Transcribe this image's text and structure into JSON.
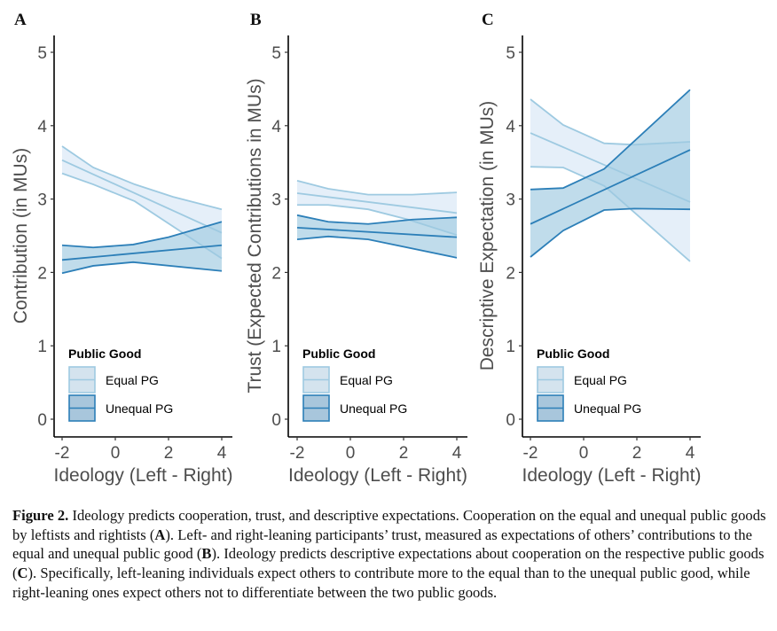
{
  "figure": {
    "caption_label": "Figure 2.",
    "caption_parts": [
      {
        "t": "  Ideology predicts cooperation, trust, and descriptive expectations. Cooperation on the equal and unequal public goods by leftists and rightists (",
        "b": false
      },
      {
        "t": "A",
        "b": true
      },
      {
        "t": "). Left- and right-leaning participants’ trust, measured as expectations of others’ contributions to the equal and unequal public good (",
        "b": false
      },
      {
        "t": "B",
        "b": true
      },
      {
        "t": "). Ideology predicts descriptive expectations about cooperation on the respective public goods (",
        "b": false
      },
      {
        "t": "C",
        "b": true
      },
      {
        "t": "). Specifically, left-leaning individuals expect others to contribute more to the equal than to the unequal public good, while right-leaning ones expect others not to differentiate between the two public goods.",
        "b": false
      }
    ]
  },
  "colors": {
    "equal_line": "#9ecae1",
    "equal_fill": "#deebf7",
    "unequal_line": "#2c7fb8",
    "unequal_fill": "#9ecae1",
    "axis": "#000000",
    "tick_text": "#4d4d4d"
  },
  "chart_data": [
    {
      "type": "line",
      "panel": "A",
      "title": "",
      "xlabel": "Ideology (Left - Right)",
      "ylabel": "Contribution (in MUs)",
      "xlim": [
        -2.3,
        4.4
      ],
      "ylim": [
        -0.25,
        5.2
      ],
      "xticks": [
        -2,
        0,
        2,
        4
      ],
      "yticks": [
        0,
        1,
        2,
        3,
        4,
        5
      ],
      "grid": false,
      "legend": {
        "title": "Public Good",
        "position": "bottom-left",
        "entries": [
          "Equal PG",
          "Unequal PG"
        ]
      },
      "series": [
        {
          "name": "Equal PG",
          "mean": {
            "x": [
              -2,
              4
            ],
            "y": [
              3.53,
              2.54
            ]
          },
          "upper": {
            "x": [
              -2,
              -0.83,
              0.73,
              2.17,
              4
            ],
            "y": [
              3.72,
              3.43,
              3.2,
              3.03,
              2.86
            ]
          },
          "lower": {
            "x": [
              -2,
              -0.83,
              0.73,
              4
            ],
            "y": [
              3.35,
              3.2,
              2.97,
              2.19
            ]
          }
        },
        {
          "name": "Unequal PG",
          "mean": {
            "x": [
              -2,
              4
            ],
            "y": [
              2.17,
              2.37
            ]
          },
          "upper": {
            "x": [
              -2,
              -0.83,
              0.67,
              2.0,
              4
            ],
            "y": [
              2.37,
              2.34,
              2.38,
              2.48,
              2.69
            ]
          },
          "lower": {
            "x": [
              -2,
              -0.83,
              0.67,
              4
            ],
            "y": [
              1.99,
              2.09,
              2.14,
              2.02
            ]
          }
        }
      ]
    },
    {
      "type": "line",
      "panel": "B",
      "title": "",
      "xlabel": "Ideology (Left - Right)",
      "ylabel": "Trust (Expected Contributions in MUs)",
      "xlim": [
        -2.3,
        4.4
      ],
      "ylim": [
        -0.25,
        5.2
      ],
      "xticks": [
        -2,
        0,
        2,
        4
      ],
      "yticks": [
        0,
        1,
        2,
        3,
        4,
        5
      ],
      "grid": false,
      "legend": {
        "title": "Public Good",
        "position": "bottom-left",
        "entries": [
          "Equal PG",
          "Unequal PG"
        ]
      },
      "series": [
        {
          "name": "Equal PG",
          "mean": {
            "x": [
              -2,
              4
            ],
            "y": [
              3.08,
              2.81
            ]
          },
          "upper": {
            "x": [
              -2,
              -0.83,
              0.67,
              2.33,
              4
            ],
            "y": [
              3.25,
              3.14,
              3.06,
              3.06,
              3.09
            ]
          },
          "lower": {
            "x": [
              -2,
              -0.83,
              0.67,
              2.17,
              4
            ],
            "y": [
              2.92,
              2.92,
              2.86,
              2.72,
              2.51
            ]
          }
        },
        {
          "name": "Unequal PG",
          "mean": {
            "x": [
              -2,
              4
            ],
            "y": [
              2.61,
              2.48
            ]
          },
          "upper": {
            "x": [
              -2,
              -0.83,
              0.67,
              2.33,
              4
            ],
            "y": [
              2.78,
              2.69,
              2.66,
              2.72,
              2.75
            ]
          },
          "lower": {
            "x": [
              -2,
              -0.83,
              0.67,
              4
            ],
            "y": [
              2.45,
              2.49,
              2.45,
              2.2
            ]
          }
        }
      ]
    },
    {
      "type": "line",
      "panel": "C",
      "title": "",
      "xlabel": "Ideology (Left - Right)",
      "ylabel": "Descriptive Expectation (in MUs)",
      "xlim": [
        -2.3,
        4.4
      ],
      "ylim": [
        -0.25,
        5.2
      ],
      "xticks": [
        -2,
        0,
        2,
        4
      ],
      "yticks": [
        0,
        1,
        2,
        3,
        4,
        5
      ],
      "grid": false,
      "legend": {
        "title": "Public Good",
        "position": "bottom-left",
        "entries": [
          "Equal PG",
          "Unequal PG"
        ]
      },
      "series": [
        {
          "name": "Equal PG",
          "mean": {
            "x": [
              -2,
              4
            ],
            "y": [
              3.9,
              2.96
            ]
          },
          "upper": {
            "x": [
              -2,
              -0.77,
              0.77,
              1.9,
              4
            ],
            "y": [
              4.36,
              4.01,
              3.76,
              3.74,
              3.78
            ]
          },
          "lower": {
            "x": [
              -2,
              -0.77,
              0.77,
              4
            ],
            "y": [
              3.44,
              3.43,
              3.18,
              2.15
            ]
          }
        },
        {
          "name": "Unequal PG",
          "mean": {
            "x": [
              -2,
              4
            ],
            "y": [
              2.66,
              3.67
            ]
          },
          "upper": {
            "x": [
              -2,
              -0.77,
              0.77,
              4
            ],
            "y": [
              3.13,
              3.15,
              3.41,
              4.49
            ]
          },
          "lower": {
            "x": [
              -2,
              -0.77,
              0.77,
              1.9,
              4
            ],
            "y": [
              2.21,
              2.57,
              2.85,
              2.87,
              2.86
            ]
          }
        }
      ]
    }
  ]
}
